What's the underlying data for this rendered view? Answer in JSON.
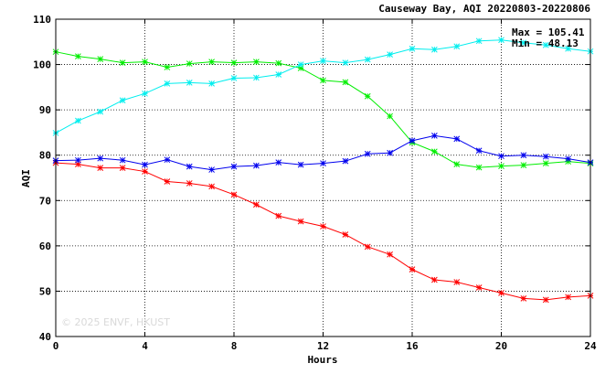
{
  "chart_data": {
    "type": "line",
    "title": "Causeway Bay, AQI 20220803-20220806",
    "xlabel": "Hours",
    "ylabel": "AQI",
    "xlim": [
      0,
      24
    ],
    "ylim": [
      40,
      110
    ],
    "xticks": [
      0,
      4,
      8,
      12,
      16,
      20,
      24
    ],
    "yticks": [
      40,
      50,
      60,
      70,
      80,
      90,
      100,
      110
    ],
    "grid": true,
    "annotations": {
      "max": "Max = 105.41",
      "min": "Min = 48.13"
    },
    "watermark": "© 2025 ENVF, HKUST",
    "x": [
      0,
      1,
      2,
      3,
      4,
      5,
      6,
      7,
      8,
      9,
      10,
      11,
      12,
      13,
      14,
      15,
      16,
      17,
      18,
      19,
      20,
      21,
      22,
      23,
      24
    ],
    "series": [
      {
        "color": "#ff0000",
        "values": [
          78.3,
          78.0,
          77.2,
          77.2,
          76.4,
          74.2,
          73.8,
          73.1,
          71.3,
          69.1,
          66.6,
          65.4,
          64.3,
          62.5,
          59.8,
          58.1,
          54.8,
          52.5,
          52.0,
          50.8,
          49.6,
          48.4,
          48.1,
          48.7,
          49.0
        ]
      },
      {
        "color": "#00ee00",
        "values": [
          102.8,
          101.8,
          101.2,
          100.4,
          100.6,
          99.4,
          100.2,
          100.6,
          100.4,
          100.6,
          100.3,
          99.2,
          96.5,
          96.1,
          93.0,
          88.6,
          82.8,
          80.8,
          78.0,
          77.3,
          77.6,
          77.8,
          78.2,
          78.6,
          78.2
        ]
      },
      {
        "color": "#0000ee",
        "values": [
          78.8,
          78.9,
          79.3,
          78.9,
          77.9,
          79.0,
          77.5,
          76.8,
          77.5,
          77.7,
          78.4,
          77.9,
          78.2,
          78.7,
          80.3,
          80.5,
          83.2,
          84.3,
          83.6,
          81.0,
          79.8,
          80.0,
          79.7,
          79.2,
          78.4
        ]
      },
      {
        "color": "#00eeee",
        "values": [
          84.9,
          87.6,
          89.6,
          92.1,
          93.6,
          95.8,
          96.0,
          95.8,
          97.0,
          97.1,
          97.8,
          100.0,
          100.8,
          100.4,
          101.1,
          102.2,
          103.5,
          103.3,
          104.0,
          105.2,
          105.41,
          104.8,
          104.3,
          103.5,
          102.9
        ]
      }
    ]
  }
}
